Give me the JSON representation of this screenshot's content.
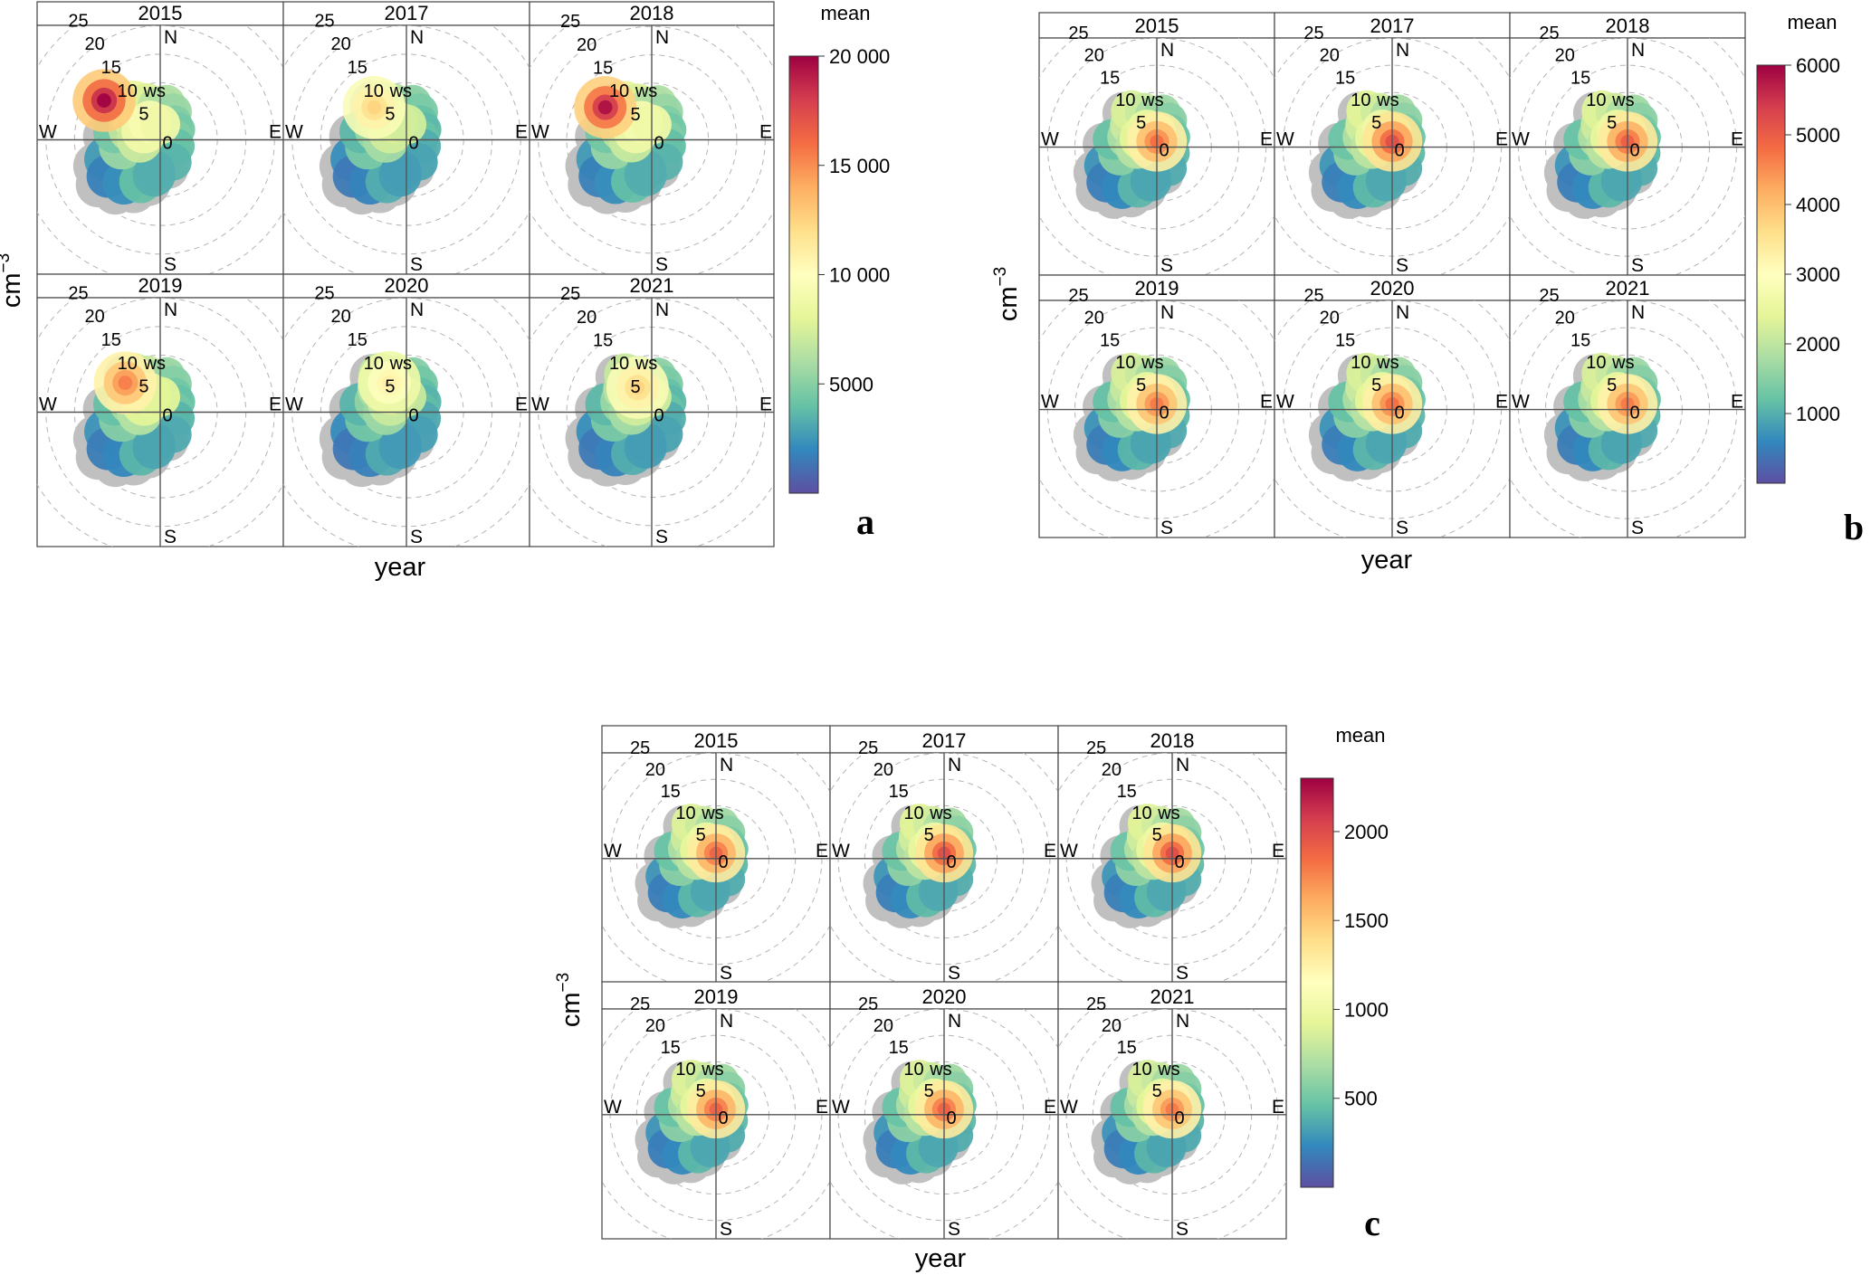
{
  "figure": {
    "colors": {
      "palette": [
        "#5e4fa2",
        "#3288bd",
        "#66c2a5",
        "#abdda4",
        "#e6f598",
        "#ffffbf",
        "#fee08b",
        "#fdae61",
        "#f46d43",
        "#d53e4f",
        "#9e0142"
      ],
      "missing": "#c0c0c0",
      "grid": "#b4b4b4",
      "axis": "#555555",
      "frame": "#444444"
    },
    "chart_data": [
      {
        "type": "heatmap",
        "subtype": "polar-plot",
        "panel_label": "a",
        "xlabel": "year",
        "ylabel": "cm",
        "ylabel_exponent": "−3",
        "colorbar_title": "mean",
        "colorbar_range": [
          0,
          20000
        ],
        "colorbar_ticks": [
          5000,
          10000,
          15000,
          20000
        ],
        "colorbar_tick_labels": [
          "5000",
          "10 000",
          "15 000",
          "20 000"
        ],
        "radial_axis_label": "ws",
        "radial_ticks": [
          0,
          5,
          10,
          15,
          20,
          25
        ],
        "directions": [
          "N",
          "E",
          "S",
          "W"
        ],
        "facets": [
          "2015",
          "2017",
          "2018",
          "2019",
          "2020",
          "2021"
        ],
        "hotspots_by_facet": [
          {
            "facet": "2015",
            "peak_mean": 20000,
            "peak_ws": 12,
            "peak_direction_deg": 305
          },
          {
            "facet": "2017",
            "peak_mean": 12500,
            "peak_ws": 8,
            "peak_direction_deg": 315
          },
          {
            "facet": "2018",
            "peak_mean": 19500,
            "peak_ws": 10,
            "peak_direction_deg": 305
          },
          {
            "facet": "2019",
            "peak_mean": 15500,
            "peak_ws": 8,
            "peak_direction_deg": 310
          },
          {
            "facet": "2020",
            "peak_mean": 11000,
            "peak_ws": 6,
            "peak_direction_deg": 330
          },
          {
            "facet": "2021",
            "peak_mean": 12500,
            "peak_ws": 5,
            "peak_direction_deg": 330
          }
        ]
      },
      {
        "type": "heatmap",
        "subtype": "polar-plot",
        "panel_label": "b",
        "xlabel": "year",
        "ylabel": "cm",
        "ylabel_exponent": "−3",
        "colorbar_title": "mean",
        "colorbar_range": [
          0,
          6000
        ],
        "colorbar_ticks": [
          1000,
          2000,
          3000,
          4000,
          5000,
          6000
        ],
        "colorbar_tick_labels": [
          "1000",
          "2000",
          "3000",
          "4000",
          "5000",
          "6000"
        ],
        "radial_axis_label": "ws",
        "radial_ticks": [
          0,
          5,
          10,
          15,
          20,
          25
        ],
        "directions": [
          "N",
          "E",
          "S",
          "W"
        ],
        "facets": [
          "2015",
          "2017",
          "2018",
          "2019",
          "2020",
          "2021"
        ],
        "hotspots_by_facet": [
          {
            "facet": "2015",
            "peak_mean": 4800,
            "peak_ws": 1,
            "peak_direction_deg": 0
          },
          {
            "facet": "2017",
            "peak_mean": 5200,
            "peak_ws": 1,
            "peak_direction_deg": 0
          },
          {
            "facet": "2018",
            "peak_mean": 5000,
            "peak_ws": 1,
            "peak_direction_deg": 0
          },
          {
            "facet": "2019",
            "peak_mean": 4700,
            "peak_ws": 1,
            "peak_direction_deg": 0
          },
          {
            "facet": "2020",
            "peak_mean": 4800,
            "peak_ws": 1,
            "peak_direction_deg": 0
          },
          {
            "facet": "2021",
            "peak_mean": 4700,
            "peak_ws": 1,
            "peak_direction_deg": 0
          }
        ]
      },
      {
        "type": "heatmap",
        "subtype": "polar-plot",
        "panel_label": "c",
        "xlabel": "year",
        "ylabel": "cm",
        "ylabel_exponent": "−3",
        "colorbar_title": "mean",
        "colorbar_range": [
          0,
          2300
        ],
        "colorbar_ticks": [
          500,
          1000,
          1500,
          2000
        ],
        "colorbar_tick_labels": [
          "500",
          "1000",
          "1500",
          "2000"
        ],
        "radial_axis_label": "ws",
        "radial_ticks": [
          0,
          5,
          10,
          15,
          20,
          25
        ],
        "directions": [
          "N",
          "E",
          "S",
          "W"
        ],
        "facets": [
          "2015",
          "2017",
          "2018",
          "2019",
          "2020",
          "2021"
        ],
        "hotspots_by_facet": [
          {
            "facet": "2015",
            "peak_mean": 1900,
            "peak_ws": 1,
            "peak_direction_deg": 0
          },
          {
            "facet": "2017",
            "peak_mean": 2000,
            "peak_ws": 1,
            "peak_direction_deg": 0
          },
          {
            "facet": "2018",
            "peak_mean": 2000,
            "peak_ws": 1,
            "peak_direction_deg": 0
          },
          {
            "facet": "2019",
            "peak_mean": 1900,
            "peak_ws": 1,
            "peak_direction_deg": 0
          },
          {
            "facet": "2020",
            "peak_mean": 1900,
            "peak_ws": 1,
            "peak_direction_deg": 0
          },
          {
            "facet": "2021",
            "peak_mean": 1800,
            "peak_ws": 1,
            "peak_direction_deg": 0
          }
        ]
      }
    ]
  }
}
